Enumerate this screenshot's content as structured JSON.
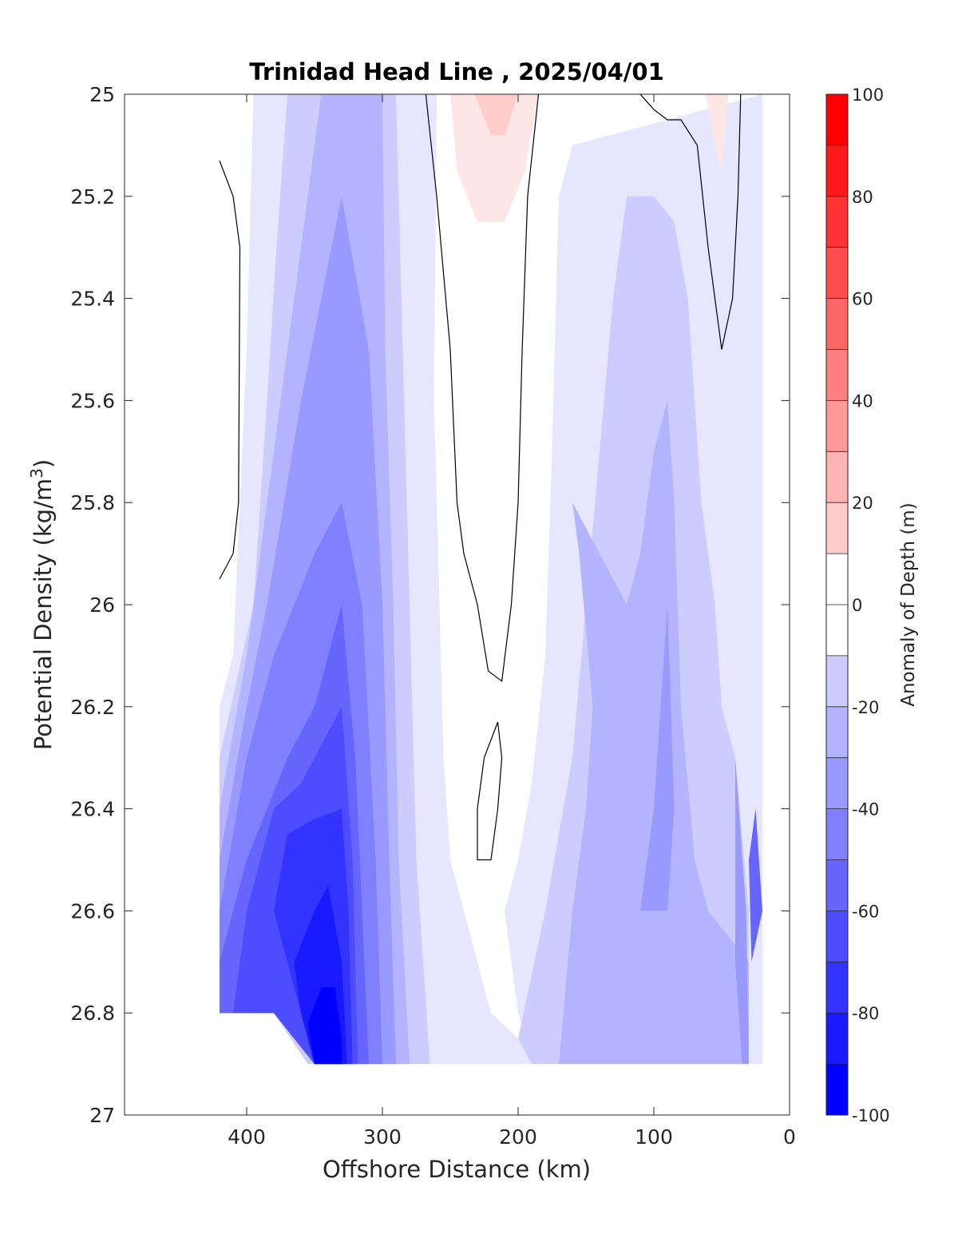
{
  "chart_data": {
    "type": "heatmap",
    "subtype": "filled-contour",
    "title": "Trinidad Head Line , 2025/04/01",
    "xlabel": "Offshore Distance (km)",
    "ylabel_main": "Potential Density (kg/m",
    "ylabel_sup": "3",
    "ylabel_close": ")",
    "xlim": [
      490,
      0
    ],
    "ylim": [
      27,
      25
    ],
    "x_reversed": true,
    "y_reversed": true,
    "xticks": [
      400,
      300,
      200,
      100,
      0
    ],
    "xtick_labels": [
      "400",
      "300",
      "200",
      "100",
      "0"
    ],
    "yticks": [
      25,
      25.2,
      25.4,
      25.6,
      25.8,
      26,
      26.2,
      26.4,
      26.6,
      26.8,
      27
    ],
    "ytick_labels": [
      "25",
      "25.2",
      "25.4",
      "25.6",
      "25.8",
      "26",
      "26.2",
      "26.4",
      "26.6",
      "26.8",
      "27"
    ],
    "colorbar": {
      "label": "Anomaly of Depth (m)",
      "range": [
        -100,
        100
      ],
      "step": 10,
      "ticks": [
        100,
        80,
        60,
        40,
        20,
        0,
        -20,
        -40,
        -60,
        -80,
        -100
      ],
      "tick_labels": [
        "100",
        "80",
        "60",
        "40",
        "20",
        "0",
        "-20",
        "-40",
        "-60",
        "-80",
        "-100"
      ],
      "colormap": "blue-white-red"
    },
    "zero_contour": [
      [
        [
          420,
          25.13
        ],
        [
          410,
          25.2
        ],
        [
          405,
          25.3
        ],
        [
          406,
          25.8
        ],
        [
          410,
          25.9
        ],
        [
          420,
          25.95
        ]
      ],
      [
        [
          268,
          25.0
        ],
        [
          260,
          25.2
        ],
        [
          250,
          25.5
        ],
        [
          245,
          25.8
        ],
        [
          240,
          25.9
        ],
        [
          230,
          26.0
        ],
        [
          222,
          26.13
        ],
        [
          212,
          26.15
        ],
        [
          205,
          26.0
        ],
        [
          200,
          25.8
        ],
        [
          197,
          25.5
        ],
        [
          193,
          25.2
        ],
        [
          185,
          25.0
        ]
      ],
      [
        [
          230,
          26.4
        ],
        [
          225,
          26.3
        ],
        [
          215,
          26.23
        ],
        [
          212,
          26.3
        ],
        [
          215,
          26.4
        ],
        [
          220,
          26.5
        ],
        [
          230,
          26.5
        ],
        [
          230,
          26.4
        ]
      ],
      [
        [
          110,
          25.0
        ],
        [
          100,
          25.03
        ],
        [
          90,
          25.05
        ],
        [
          80,
          25.05
        ],
        [
          68,
          25.1
        ],
        [
          60,
          25.3
        ],
        [
          50,
          25.5
        ],
        [
          42,
          25.4
        ],
        [
          38,
          25.2
        ],
        [
          36,
          25.0
        ]
      ]
    ],
    "anomaly_regions": [
      {
        "value": -10,
        "polygon": [
          [
            395,
            25.0
          ],
          [
            260,
            25.0
          ],
          [
            262,
            25.6
          ],
          [
            258,
            26.0
          ],
          [
            255,
            26.3
          ],
          [
            250,
            26.5
          ],
          [
            240,
            26.6
          ],
          [
            220,
            26.8
          ],
          [
            180,
            26.9
          ],
          [
            320,
            26.9
          ],
          [
            330,
            26.8
          ],
          [
            380,
            26.8
          ],
          [
            420,
            26.8
          ],
          [
            420,
            26.2
          ],
          [
            410,
            26.1
          ],
          [
            405,
            25.8
          ],
          [
            400,
            25.5
          ]
        ]
      },
      {
        "value": -10,
        "polygon": [
          [
            210,
            26.6
          ],
          [
            200,
            26.5
          ],
          [
            190,
            26.35
          ],
          [
            180,
            26.1
          ],
          [
            175,
            25.7
          ],
          [
            170,
            25.2
          ],
          [
            160,
            25.1
          ],
          [
            20,
            25.0
          ],
          [
            20,
            26.9
          ],
          [
            190,
            26.9
          ],
          [
            200,
            26.8
          ]
        ]
      },
      {
        "value": 10,
        "polygon": [
          [
            250,
            25.0
          ],
          [
            185,
            25.0
          ],
          [
            195,
            25.15
          ],
          [
            210,
            25.25
          ],
          [
            230,
            25.25
          ],
          [
            245,
            25.15
          ]
        ]
      },
      {
        "value": 20,
        "polygon": [
          [
            232,
            25.0
          ],
          [
            200,
            25.0
          ],
          [
            210,
            25.08
          ],
          [
            220,
            25.08
          ]
        ]
      },
      {
        "value": 10,
        "polygon": [
          [
            62,
            25.0
          ],
          [
            45,
            25.0
          ],
          [
            50,
            25.15
          ],
          [
            55,
            25.1
          ]
        ]
      },
      {
        "value": -20,
        "polygon": [
          [
            370,
            25.0
          ],
          [
            290,
            25.0
          ],
          [
            285,
            25.5
          ],
          [
            280,
            26.0
          ],
          [
            275,
            26.5
          ],
          [
            265,
            26.9
          ],
          [
            355,
            26.9
          ],
          [
            380,
            26.8
          ],
          [
            420,
            26.8
          ],
          [
            420,
            26.3
          ],
          [
            395,
            26.0
          ],
          [
            385,
            25.6
          ],
          [
            378,
            25.3
          ]
        ]
      },
      {
        "value": -20,
        "polygon": [
          [
            200,
            26.85
          ],
          [
            180,
            26.6
          ],
          [
            160,
            26.3
          ],
          [
            150,
            26.0
          ],
          [
            140,
            25.7
          ],
          [
            130,
            25.4
          ],
          [
            125,
            25.3
          ],
          [
            120,
            25.2
          ],
          [
            100,
            25.2
          ],
          [
            85,
            25.25
          ],
          [
            75,
            25.4
          ],
          [
            65,
            25.8
          ],
          [
            55,
            26.0
          ],
          [
            50,
            26.2
          ],
          [
            40,
            26.3
          ],
          [
            30,
            26.6
          ],
          [
            30,
            26.9
          ],
          [
            190,
            26.9
          ]
        ]
      },
      {
        "value": -30,
        "polygon": [
          [
            345,
            25.0
          ],
          [
            300,
            25.0
          ],
          [
            298,
            25.5
          ],
          [
            292,
            26.0
          ],
          [
            288,
            26.5
          ],
          [
            280,
            26.9
          ],
          [
            350,
            26.9
          ],
          [
            380,
            26.8
          ],
          [
            420,
            26.8
          ],
          [
            420,
            26.4
          ],
          [
            400,
            26.1
          ],
          [
            375,
            25.6
          ],
          [
            360,
            25.3
          ]
        ]
      },
      {
        "value": -30,
        "polygon": [
          [
            170,
            26.9
          ],
          [
            160,
            26.6
          ],
          [
            150,
            26.4
          ],
          [
            145,
            26.2
          ],
          [
            155,
            25.9
          ],
          [
            160,
            25.8
          ],
          [
            140,
            25.9
          ],
          [
            120,
            26.0
          ],
          [
            110,
            25.9
          ],
          [
            100,
            25.7
          ],
          [
            90,
            25.6
          ],
          [
            85,
            25.8
          ],
          [
            80,
            26.2
          ],
          [
            70,
            26.5
          ],
          [
            60,
            26.6
          ],
          [
            30,
            26.7
          ],
          [
            30,
            26.9
          ]
        ]
      },
      {
        "value": -40,
        "polygon": [
          [
            330,
            25.2
          ],
          [
            310,
            25.5
          ],
          [
            300,
            26.0
          ],
          [
            295,
            26.5
          ],
          [
            290,
            26.9
          ],
          [
            350,
            26.9
          ],
          [
            380,
            26.8
          ],
          [
            420,
            26.8
          ],
          [
            420,
            26.5
          ],
          [
            400,
            26.2
          ],
          [
            385,
            26.0
          ],
          [
            360,
            25.6
          ]
        ]
      },
      {
        "value": -40,
        "polygon": [
          [
            110,
            26.6
          ],
          [
            100,
            26.4
          ],
          [
            95,
            26.2
          ],
          [
            90,
            26.0
          ],
          [
            85,
            26.4
          ],
          [
            90,
            26.6
          ]
        ]
      },
      {
        "value": -50,
        "polygon": [
          [
            330,
            25.8
          ],
          [
            315,
            26.0
          ],
          [
            305,
            26.5
          ],
          [
            300,
            26.9
          ],
          [
            350,
            26.9
          ],
          [
            380,
            26.8
          ],
          [
            420,
            26.8
          ],
          [
            420,
            26.6
          ],
          [
            400,
            26.3
          ],
          [
            380,
            26.1
          ],
          [
            350,
            25.9
          ]
        ]
      },
      {
        "value": -60,
        "polygon": [
          [
            330,
            26.0
          ],
          [
            320,
            26.3
          ],
          [
            315,
            26.6
          ],
          [
            310,
            26.9
          ],
          [
            350,
            26.9
          ],
          [
            380,
            26.8
          ],
          [
            420,
            26.8
          ],
          [
            420,
            26.7
          ],
          [
            400,
            26.5
          ],
          [
            370,
            26.3
          ],
          [
            350,
            26.2
          ]
        ]
      },
      {
        "value": -70,
        "polygon": [
          [
            330,
            26.2
          ],
          [
            322,
            26.5
          ],
          [
            318,
            26.9
          ],
          [
            350,
            26.9
          ],
          [
            380,
            26.8
          ],
          [
            410,
            26.8
          ],
          [
            400,
            26.6
          ],
          [
            380,
            26.4
          ],
          [
            360,
            26.35
          ]
        ]
      },
      {
        "value": -80,
        "polygon": [
          [
            330,
            26.4
          ],
          [
            325,
            26.6
          ],
          [
            322,
            26.9
          ],
          [
            350,
            26.9
          ],
          [
            360,
            26.8
          ],
          [
            370,
            26.7
          ],
          [
            380,
            26.6
          ],
          [
            370,
            26.45
          ],
          [
            350,
            26.42
          ]
        ]
      },
      {
        "value": -90,
        "polygon": [
          [
            340,
            26.55
          ],
          [
            330,
            26.7
          ],
          [
            326,
            26.9
          ],
          [
            350,
            26.9
          ],
          [
            360,
            26.8
          ],
          [
            365,
            26.7
          ],
          [
            350,
            26.6
          ]
        ]
      },
      {
        "value": -100,
        "polygon": [
          [
            335,
            26.75
          ],
          [
            330,
            26.85
          ],
          [
            330,
            26.9
          ],
          [
            350,
            26.9
          ],
          [
            355,
            26.82
          ],
          [
            345,
            26.75
          ]
        ]
      },
      {
        "value": -40,
        "polygon": [
          [
            40,
            26.3
          ],
          [
            32,
            26.6
          ],
          [
            30,
            26.9
          ],
          [
            35,
            26.9
          ],
          [
            40,
            26.7
          ]
        ]
      },
      {
        "value": -60,
        "polygon": [
          [
            25,
            26.4
          ],
          [
            20,
            26.6
          ],
          [
            28,
            26.7
          ],
          [
            30,
            26.5
          ]
        ]
      }
    ]
  }
}
